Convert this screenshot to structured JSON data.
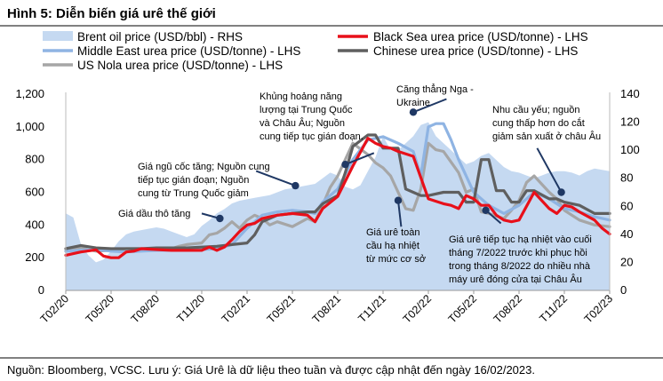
{
  "title": "Hình 5: Diễn biến giá urê thế giới",
  "footer": "Nguồn: Bloomberg, VCSC. Lưu ý: Giá Urê là dữ liệu theo tuần và được cập nhật đến ngày 16/02/2023.",
  "colors": {
    "brent": "#c5d9f1",
    "black_sea": "#e8101a",
    "middle_east": "#8fb4e3",
    "chinese": "#5f5f5f",
    "us_nola": "#a6a6a6",
    "callout": "#1f3864"
  },
  "chart_data": {
    "type": "line",
    "title": "Hình 5: Diễn biến giá urê thế giới",
    "x_ticks": [
      "T02/20",
      "T05/20",
      "T08/20",
      "T11/20",
      "T02/21",
      "T05/21",
      "T08/21",
      "T11/21",
      "T02/22",
      "T05/22",
      "T08/22",
      "T11/22",
      "T02/23"
    ],
    "x_range": [
      0,
      36
    ],
    "y_left": {
      "ticks": [
        "0",
        "200",
        "400",
        "600",
        "800",
        "1,000",
        "1,200"
      ],
      "range": [
        0,
        1200
      ]
    },
    "y_right": {
      "ticks": [
        "0",
        "20",
        "40",
        "60",
        "80",
        "100",
        "120",
        "140"
      ],
      "range": [
        0,
        140
      ]
    },
    "legend": {
      "placement": "top"
    },
    "series": [
      {
        "id": "brent",
        "name": "Brent oil price (USD/bbl) - RHS",
        "axis": "right",
        "style": "area",
        "x": [
          0,
          0.5,
          1,
          1.5,
          2,
          2.5,
          3,
          3.5,
          4,
          4.5,
          5,
          5.5,
          6,
          6.5,
          7,
          7.5,
          8,
          8.5,
          9,
          9.5,
          10,
          10.5,
          11,
          11.5,
          12,
          12.5,
          13,
          13.5,
          14,
          14.5,
          15,
          15.5,
          16,
          16.5,
          17,
          17.5,
          18,
          18.5,
          19,
          19.5,
          20,
          20.5,
          21,
          21.5,
          22,
          22.5,
          23,
          23.5,
          24,
          24.5,
          25,
          25.5,
          26,
          26.5,
          27,
          27.5,
          28,
          28.5,
          29,
          29.5,
          30,
          30.5,
          31,
          31.5,
          32,
          32.5,
          33,
          33.5,
          34,
          34.5,
          35,
          35.5,
          36
        ],
        "values": [
          55,
          52,
          33,
          25,
          20,
          22,
          28,
          35,
          40,
          42,
          43,
          44,
          45,
          44,
          42,
          40,
          38,
          40,
          46,
          50,
          55,
          58,
          62,
          64,
          65,
          66,
          67,
          68,
          70,
          72,
          73,
          74,
          75,
          76,
          80,
          84,
          82,
          74,
          72,
          75,
          85,
          95,
          110,
          100,
          100,
          105,
          110,
          118,
          120,
          110,
          105,
          100,
          95,
          90,
          92,
          96,
          98,
          93,
          88,
          85,
          84,
          82,
          80,
          82,
          84,
          85,
          85,
          84,
          82,
          85,
          87,
          86,
          85
        ]
      },
      {
        "id": "black_sea",
        "name": "Black Sea urea price (USD/tonne) - LHS",
        "axis": "left",
        "style": "line",
        "x": [
          0,
          1,
          2,
          2.5,
          3,
          3.5,
          4,
          4.5,
          5,
          6,
          7,
          8,
          9,
          9.5,
          10,
          10.5,
          11,
          11.5,
          12,
          12.5,
          13,
          13.5,
          14,
          15,
          16,
          16.5,
          17,
          18,
          19,
          20,
          20.5,
          21,
          21.5,
          22,
          23,
          24,
          25,
          25.5,
          26,
          26.5,
          27,
          27.5,
          28,
          28.5,
          29,
          29.5,
          30,
          31,
          32,
          32.5,
          33,
          33.5,
          34,
          35,
          35.5,
          36
        ],
        "values": [
          215,
          235,
          248,
          210,
          200,
          200,
          235,
          240,
          255,
          250,
          245,
          245,
          245,
          265,
          245,
          265,
          310,
          360,
          400,
          410,
          440,
          450,
          460,
          470,
          460,
          420,
          500,
          575,
          760,
          930,
          900,
          880,
          870,
          850,
          820,
          560,
          530,
          520,
          500,
          580,
          560,
          520,
          520,
          460,
          430,
          420,
          430,
          600,
          500,
          470,
          520,
          510,
          480,
          430,
          380,
          345
        ]
      },
      {
        "id": "middle_east",
        "name": "Middle East urea price (USD/tonne) - LHS",
        "axis": "left",
        "style": "line",
        "x": [
          0,
          1,
          2,
          3,
          4,
          5,
          6,
          7,
          8,
          9,
          10,
          11,
          11.5,
          12,
          12.5,
          13,
          14,
          15,
          16,
          16.5,
          17,
          18,
          19,
          20,
          21,
          22,
          23,
          23.5,
          24,
          24.5,
          25,
          25.5,
          26,
          26.5,
          27,
          28,
          29,
          30,
          31,
          32,
          33,
          34,
          35,
          36
        ],
        "values": [
          240,
          245,
          250,
          240,
          235,
          240,
          245,
          245,
          250,
          250,
          255,
          280,
          330,
          380,
          420,
          460,
          480,
          490,
          480,
          470,
          540,
          620,
          800,
          920,
          940,
          900,
          850,
          700,
          1000,
          1020,
          1020,
          920,
          800,
          700,
          600,
          520,
          470,
          520,
          600,
          560,
          500,
          480,
          450,
          430
        ]
      },
      {
        "id": "chinese",
        "name": "Chinese urea price (USD/tonne) - LHS",
        "axis": "left",
        "style": "line",
        "x": [
          0,
          1,
          2,
          3,
          4,
          5,
          6,
          7,
          8,
          9,
          10,
          11,
          11.5,
          12,
          12.5,
          13,
          14,
          15,
          16,
          16.5,
          17,
          18,
          18.5,
          19,
          20,
          20.5,
          21,
          22,
          22.5,
          23,
          23.5,
          24,
          25,
          26,
          26.5,
          27,
          27.5,
          28,
          28.5,
          29,
          29.5,
          30,
          30.5,
          31,
          32,
          32.5,
          33,
          34,
          35,
          36
        ],
        "values": [
          255,
          275,
          260,
          255,
          255,
          255,
          260,
          260,
          260,
          265,
          270,
          280,
          285,
          290,
          340,
          420,
          460,
          470,
          480,
          480,
          530,
          580,
          720,
          880,
          950,
          950,
          870,
          870,
          620,
          600,
          580,
          580,
          600,
          600,
          540,
          540,
          800,
          800,
          610,
          610,
          540,
          540,
          610,
          610,
          560,
          560,
          540,
          520,
          470,
          470
        ]
      },
      {
        "id": "us_nola",
        "name": "US Nola urea price (USD/tonne) - LHS",
        "axis": "left",
        "style": "line",
        "x": [
          0,
          0.5,
          1,
          1.5,
          2,
          3,
          4,
          5,
          6,
          7,
          7.5,
          8,
          9,
          9.5,
          10,
          10.5,
          11,
          11.5,
          12,
          12.5,
          13,
          13.5,
          14,
          15,
          16,
          16.5,
          17,
          17.5,
          18,
          19,
          20,
          20.5,
          21,
          21.5,
          22,
          22.5,
          23,
          23.5,
          24,
          24.5,
          25,
          26,
          26.5,
          27,
          27.5,
          28,
          29,
          29.5,
          30,
          30.5,
          31,
          32,
          32.5,
          33,
          34,
          35,
          36
        ],
        "values": [
          240,
          250,
          260,
          250,
          240,
          245,
          255,
          255,
          250,
          255,
          270,
          280,
          290,
          340,
          350,
          380,
          420,
          380,
          430,
          460,
          440,
          400,
          420,
          390,
          440,
          420,
          520,
          630,
          700,
          900,
          830,
          780,
          750,
          700,
          600,
          500,
          490,
          620,
          900,
          860,
          850,
          720,
          600,
          620,
          480,
          470,
          440,
          490,
          550,
          660,
          700,
          600,
          560,
          490,
          430,
          400,
          390
        ]
      }
    ],
    "annotations": [
      "Giá dầu thô tăng",
      "Giá ngũ cốc tăng; Nguồn cung tiếp tục gián đoạn; Nguồn cung từ Trung Quốc giảm",
      "Khủng hoảng năng lượng tại Trung Quốc và Châu Âu; Nguồn cung tiếp tục gián đoạn.",
      "Căng thẳng Nga - Ukraine",
      "Nhu cầu yếu; nguồn cung thấp hơn do cắt giảm sản xuất ở châu Âu",
      "Giá urê toàn cầu hạ nhiệt từ mức cơ sở",
      "Giá urê tiếp tục hạ nhiệt vào cuối tháng 7/2022 trước khi phục hồi trong tháng 8/2022 do nhiều nhà máy urê đóng cửa tại Châu Âu"
    ]
  }
}
